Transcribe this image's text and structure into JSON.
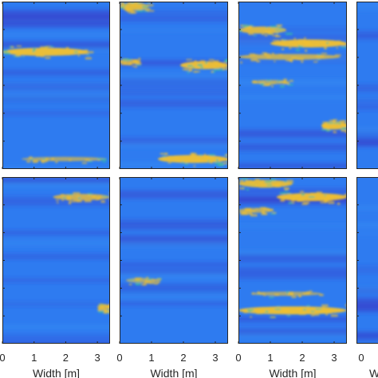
{
  "chart_data": {
    "type": "heatmap",
    "layout": {
      "rows": 2,
      "columns": 4,
      "last_column_partially_visible": true
    },
    "xlabel": "Width [m]",
    "x_ticks": [
      0,
      1,
      2,
      3
    ],
    "xlim": [
      0,
      3.4
    ],
    "y_ticks_visible": false,
    "colormap": {
      "low": "#3a2fc0",
      "mid": "#2e7bf0",
      "high": "#f2c12e"
    },
    "field_description": "blue background field with yellow horizontal patches",
    "panels": [
      {
        "row": 1,
        "col": 1,
        "patches": [
          {
            "y_frac": 0.3,
            "x_start": 0.0,
            "x_end": 2.7,
            "intensity": 1.0
          },
          {
            "y_frac": 0.94,
            "x_start": 0.6,
            "x_end": 3.3,
            "intensity": 0.35
          }
        ]
      },
      {
        "row": 1,
        "col": 2,
        "patches": [
          {
            "y_frac": 0.03,
            "x_start": 0.0,
            "x_end": 0.9,
            "intensity": 0.9
          },
          {
            "y_frac": 0.36,
            "x_start": 0.0,
            "x_end": 0.6,
            "intensity": 0.5
          },
          {
            "y_frac": 0.38,
            "x_start": 1.9,
            "x_end": 3.4,
            "intensity": 1.0
          },
          {
            "y_frac": 0.94,
            "x_start": 1.2,
            "x_end": 3.4,
            "intensity": 1.0
          }
        ]
      },
      {
        "row": 1,
        "col": 3,
        "patches": [
          {
            "y_frac": 0.17,
            "x_start": 0.0,
            "x_end": 1.5,
            "intensity": 0.85
          },
          {
            "y_frac": 0.25,
            "x_start": 1.0,
            "x_end": 3.4,
            "intensity": 1.0
          },
          {
            "y_frac": 0.33,
            "x_start": 0.0,
            "x_end": 3.2,
            "intensity": 0.6
          },
          {
            "y_frac": 0.48,
            "x_start": 0.4,
            "x_end": 1.6,
            "intensity": 0.35
          },
          {
            "y_frac": 0.74,
            "x_start": 2.6,
            "x_end": 3.4,
            "intensity": 1.0
          }
        ]
      },
      {
        "row": 2,
        "col": 1,
        "patches": [
          {
            "y_frac": 0.12,
            "x_start": 1.6,
            "x_end": 3.4,
            "intensity": 0.7
          },
          {
            "y_frac": 0.78,
            "x_start": 3.0,
            "x_end": 3.4,
            "intensity": 0.6
          }
        ]
      },
      {
        "row": 2,
        "col": 2,
        "patches": [
          {
            "y_frac": 0.62,
            "x_start": 0.2,
            "x_end": 1.2,
            "intensity": 0.4
          }
        ]
      },
      {
        "row": 2,
        "col": 3,
        "patches": [
          {
            "y_frac": 0.04,
            "x_start": 0.0,
            "x_end": 1.7,
            "intensity": 0.9
          },
          {
            "y_frac": 0.12,
            "x_start": 1.2,
            "x_end": 3.4,
            "intensity": 1.0
          },
          {
            "y_frac": 0.2,
            "x_start": 0.0,
            "x_end": 1.1,
            "intensity": 0.45
          },
          {
            "y_frac": 0.7,
            "x_start": 0.4,
            "x_end": 2.6,
            "intensity": 0.35
          },
          {
            "y_frac": 0.8,
            "x_start": 0.0,
            "x_end": 3.4,
            "intensity": 1.0
          }
        ]
      },
      {
        "row": 1,
        "col": 4,
        "patches": []
      },
      {
        "row": 2,
        "col": 4,
        "patches": []
      }
    ]
  }
}
